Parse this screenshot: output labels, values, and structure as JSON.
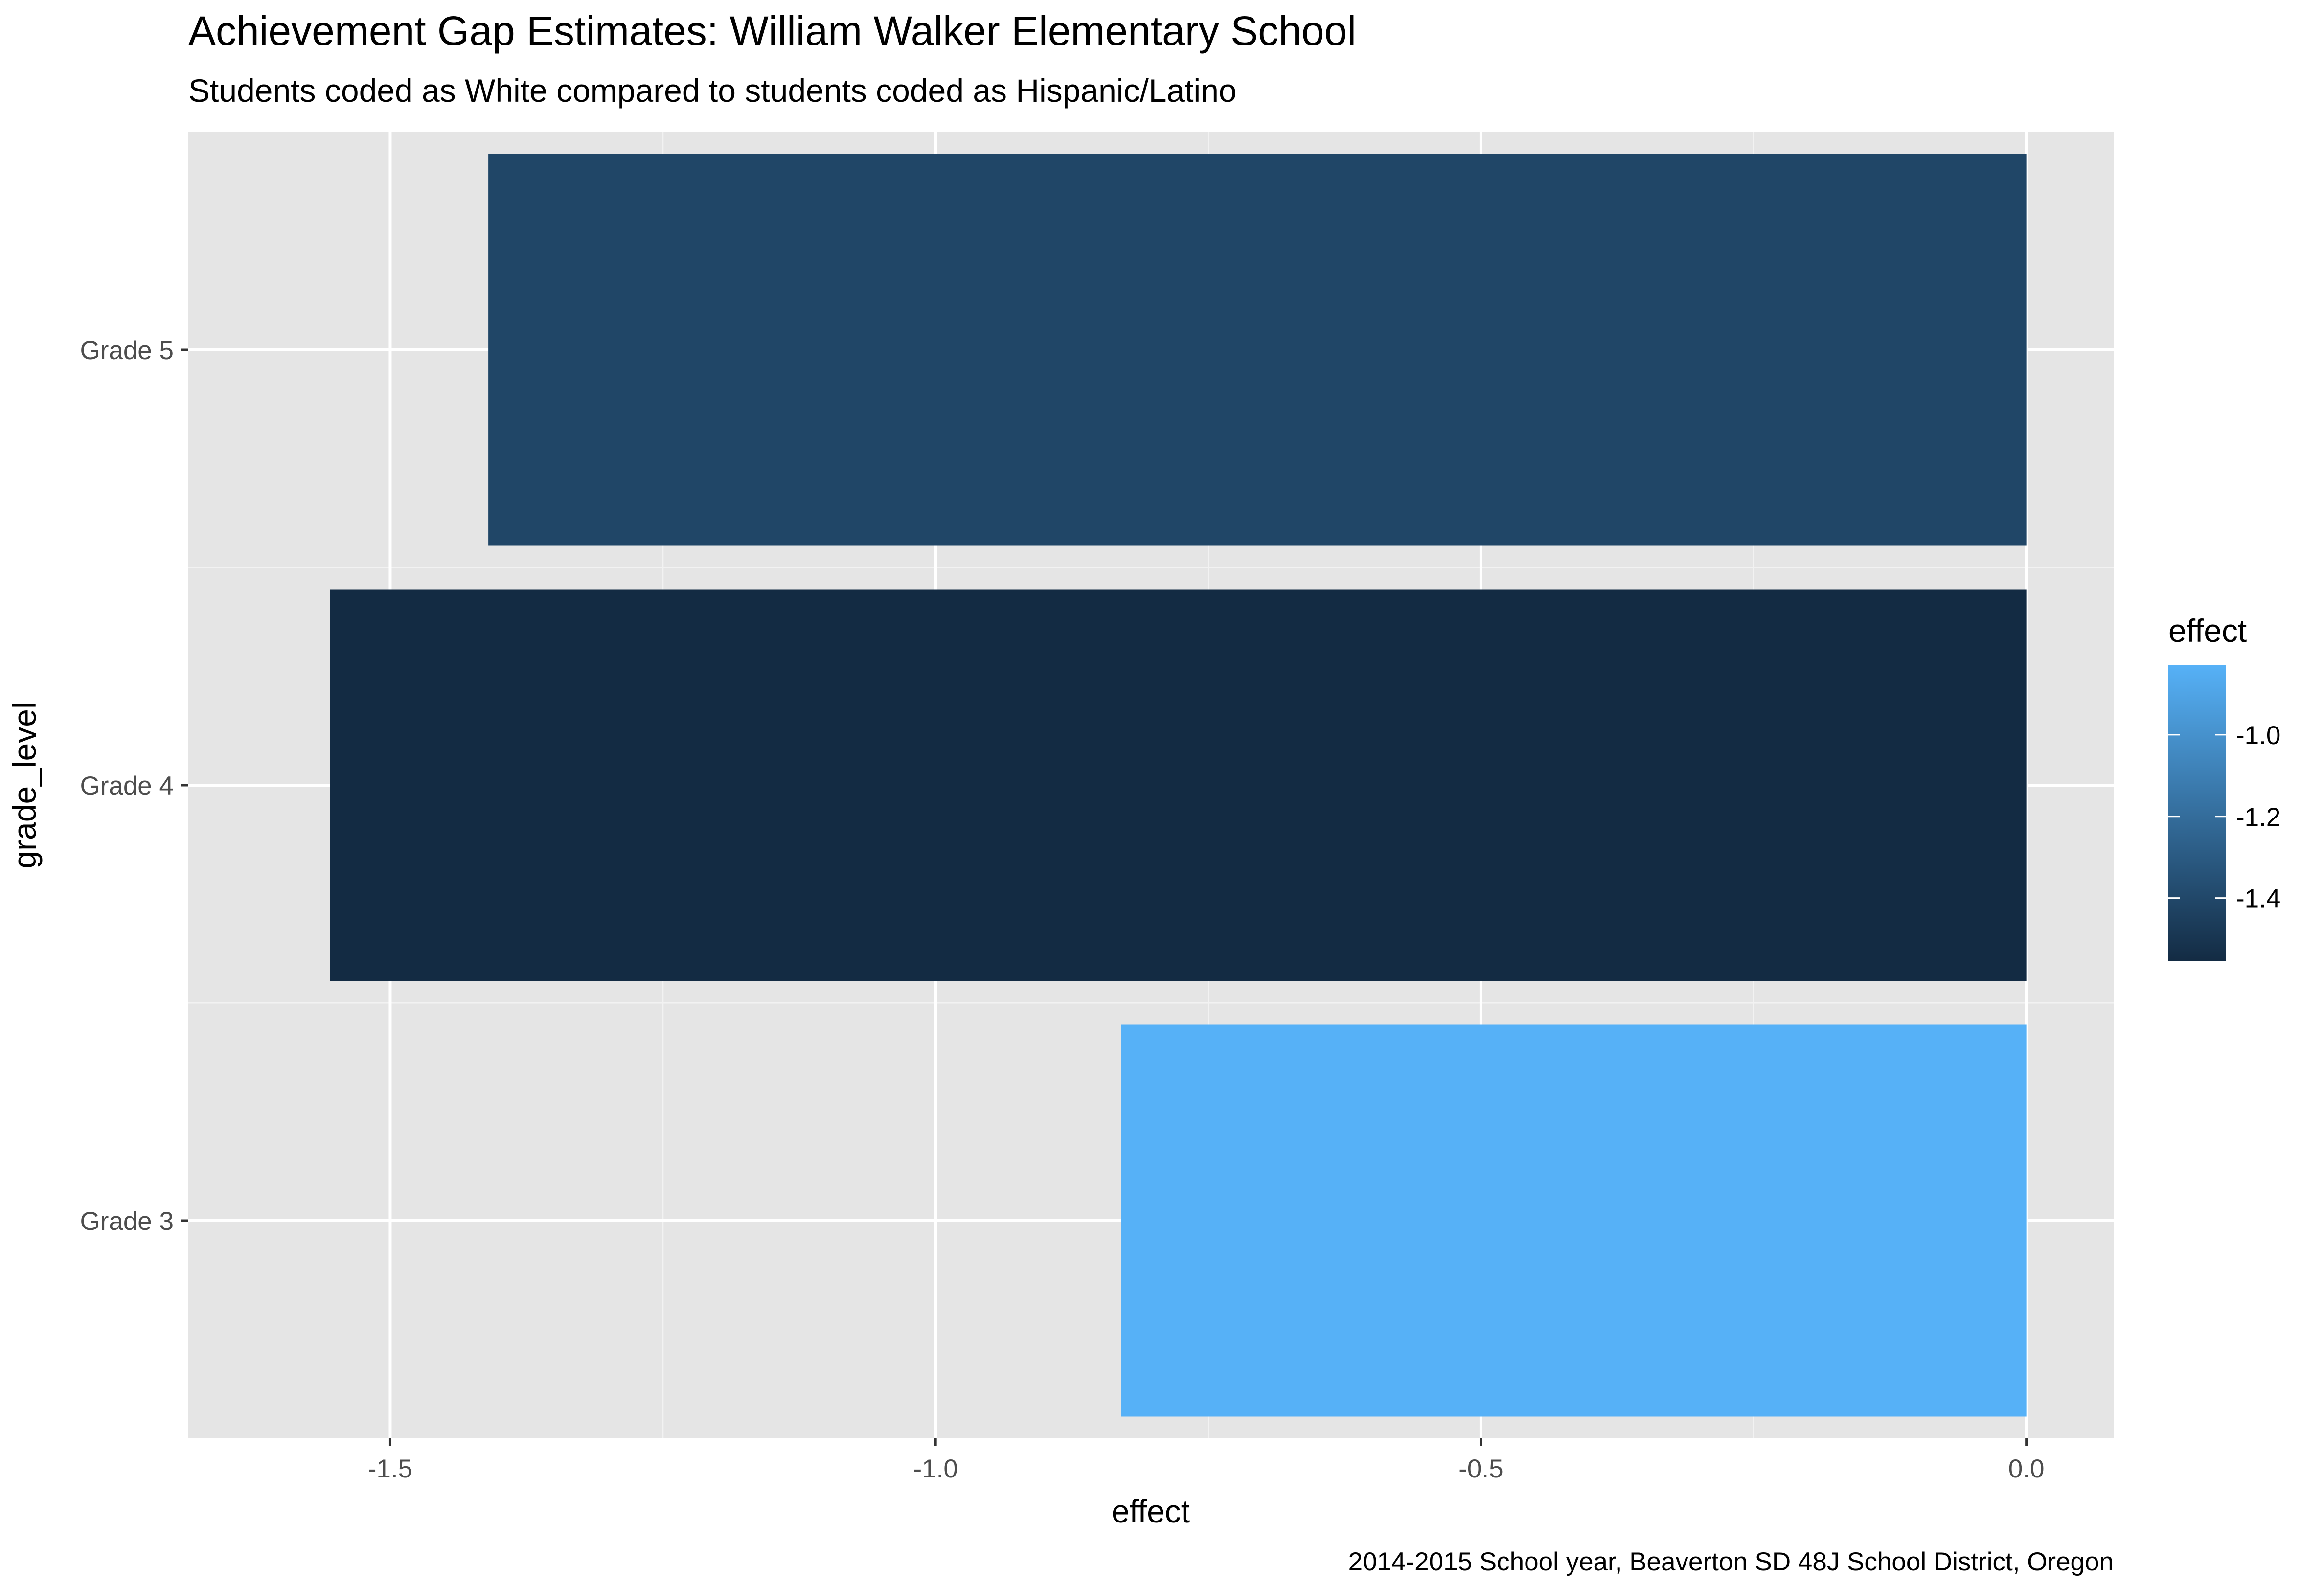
{
  "chart_data": {
    "type": "bar",
    "orientation": "horizontal",
    "title": "Achievement Gap Estimates: William Walker Elementary School",
    "subtitle": "Students coded as White compared to students coded as Hispanic/Latino",
    "caption": "2014-2015 School year, Beaverton SD 48J School District, Oregon",
    "xlabel": "effect",
    "ylabel": "grade_level",
    "categories": [
      "Grade 3",
      "Grade 4",
      "Grade 5"
    ],
    "values": [
      -0.83,
      -1.555,
      -1.41
    ],
    "xlim": [
      -1.685,
      0.08
    ],
    "x_ticks": [
      -1.5,
      -1.0,
      -0.5,
      0.0
    ],
    "x_tick_labels": [
      "-1.5",
      "-1.0",
      "-0.5",
      "0.0"
    ],
    "grid": true,
    "legend": {
      "title": "effect",
      "placement": "right",
      "type": "colorbar",
      "range": [
        -1.555,
        -0.83
      ],
      "ticks": [
        -1.0,
        -1.2,
        -1.4
      ],
      "tick_labels": [
        "-1.0",
        "-1.2",
        "-1.4"
      ],
      "color_low": "#132B43",
      "color_high": "#56B1F7"
    },
    "colors": {
      "panel_bg": "#E5E5E5",
      "grid": "#FFFFFF",
      "text": "#000000",
      "tick_text": "#4D4D4D"
    }
  }
}
